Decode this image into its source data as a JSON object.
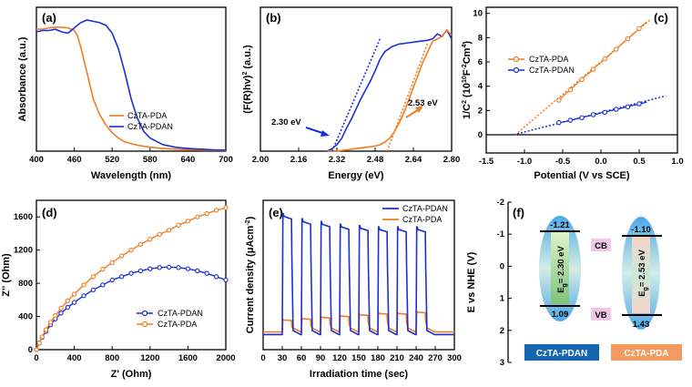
{
  "colors": {
    "orange": "#f07c20",
    "blue": "#1b2fd6",
    "black": "#000000",
    "pdan_box": "#1565b0",
    "pda_box": "#f59a5e"
  },
  "chart_data": [
    {
      "panel": "(a)",
      "type": "line",
      "xlabel": "Wavelength (nm)",
      "ylabel": "Absorbance (a.u.)",
      "xlim": [
        400,
        700
      ],
      "ylim": [
        0,
        1
      ],
      "xticks": [
        "400",
        "460",
        "520",
        "580",
        "640",
        "700"
      ],
      "series": [
        {
          "name": "CzTA-PDA",
          "color": "#f07c20",
          "x": [
            400,
            410,
            420,
            430,
            440,
            450,
            460,
            465,
            470,
            480,
            490,
            500,
            510,
            520,
            530,
            540,
            560,
            580,
            600,
            620,
            640,
            660,
            680,
            700
          ],
          "y": [
            0.93,
            0.93,
            0.94,
            0.945,
            0.945,
            0.94,
            0.92,
            0.88,
            0.8,
            0.6,
            0.4,
            0.28,
            0.2,
            0.14,
            0.1,
            0.07,
            0.045,
            0.03,
            0.02,
            0.015,
            0.01,
            0.008,
            0.006,
            0.005
          ]
        },
        {
          "name": "CzTA-PDAN",
          "color": "#1b2fd6",
          "x": [
            400,
            410,
            420,
            430,
            440,
            450,
            460,
            470,
            480,
            490,
            500,
            510,
            520,
            530,
            540,
            550,
            560,
            570,
            580,
            600,
            620,
            640,
            660,
            680,
            700
          ],
          "y": [
            0.91,
            0.92,
            0.92,
            0.93,
            0.91,
            0.9,
            0.94,
            0.98,
            1.0,
            0.99,
            0.98,
            0.96,
            0.9,
            0.78,
            0.6,
            0.4,
            0.25,
            0.15,
            0.1,
            0.05,
            0.03,
            0.02,
            0.015,
            0.01,
            0.008
          ]
        }
      ]
    },
    {
      "panel": "(b)",
      "type": "line",
      "xlabel": "Energy (eV)",
      "ylabel": "(F(R)hv)",
      "ylabel_sup": "2",
      "ylabel_end": " (a.u.)",
      "xlim": [
        2.0,
        2.8
      ],
      "ylim": [
        0,
        1
      ],
      "xticks": [
        "2.00",
        "2.16",
        "2.32",
        "2.48",
        "2.64",
        "2.80"
      ],
      "series": [
        {
          "name": "CzTA-PDAN",
          "color": "#1b2fd6",
          "x": [
            2.28,
            2.3,
            2.32,
            2.34,
            2.36,
            2.38,
            2.4,
            2.42,
            2.44,
            2.46,
            2.48,
            2.5,
            2.52,
            2.55,
            2.58,
            2.62,
            2.66,
            2.7,
            2.72,
            2.74,
            2.76,
            2.78,
            2.8
          ],
          "y": [
            0.0,
            0.02,
            0.05,
            0.1,
            0.18,
            0.25,
            0.33,
            0.41,
            0.48,
            0.55,
            0.63,
            0.72,
            0.78,
            0.82,
            0.84,
            0.85,
            0.86,
            0.87,
            0.88,
            0.92,
            0.9,
            0.95,
            0.88
          ]
        },
        {
          "name": "CzTA-PDA",
          "color": "#f07c20",
          "x": [
            2.28,
            2.32,
            2.36,
            2.4,
            2.44,
            2.48,
            2.5,
            2.52,
            2.54,
            2.56,
            2.58,
            2.6,
            2.62,
            2.64,
            2.66,
            2.68,
            2.7,
            2.72,
            2.74,
            2.76,
            2.78,
            2.8
          ],
          "y": [
            0.0,
            0.0,
            0.01,
            0.02,
            0.03,
            0.04,
            0.05,
            0.07,
            0.1,
            0.15,
            0.22,
            0.3,
            0.4,
            0.5,
            0.6,
            0.7,
            0.78,
            0.86,
            0.88,
            0.9,
            0.95,
            0.91
          ]
        }
      ],
      "tangents": [
        {
          "color": "#1b2fd6",
          "x": [
            2.3,
            2.5
          ],
          "y": [
            0.0,
            0.88
          ]
        },
        {
          "color": "#f07c20",
          "x": [
            2.53,
            2.7
          ],
          "y": [
            0.0,
            0.85
          ]
        }
      ],
      "annotations": [
        "2.30 eV",
        "2.53 eV"
      ]
    },
    {
      "panel": "(c)",
      "type": "scatter",
      "xlabel": "Potential (V vs SCE)",
      "ylabel": "1/C",
      "ylabel_sup": "2",
      "ylabel_mid": " (10",
      "ylabel_sup2": "10",
      "ylabel_end": "F",
      "ylabel_sup3": "-2",
      "ylabel_tail": "Cm",
      "ylabel_sup4": "4",
      "ylabel_close": ")",
      "xlim": [
        -1.5,
        1.0
      ],
      "ylim": [
        -1.5,
        10.5
      ],
      "xticks": [
        "-1.5",
        "-1.0",
        "-0.5",
        "0.0",
        "0.5",
        "1.0"
      ],
      "yticks": [
        "0",
        "2",
        "4",
        "6",
        "8",
        "10"
      ],
      "series": [
        {
          "name": "CzTA-PDA",
          "color": "#f07c20",
          "x": [
            -0.55,
            -0.5,
            -0.45,
            -0.4,
            -0.35,
            -0.3,
            -0.25,
            -0.2,
            -0.15,
            -0.1,
            -0.05,
            0.0,
            0.05,
            0.1,
            0.15,
            0.2,
            0.25,
            0.3,
            0.35,
            0.4,
            0.45,
            0.5,
            0.55,
            0.6
          ],
          "y": [
            2.85,
            3.15,
            3.45,
            3.7,
            4.0,
            4.3,
            4.55,
            4.85,
            5.1,
            5.4,
            5.7,
            5.95,
            6.25,
            6.5,
            6.8,
            7.05,
            7.35,
            7.65,
            7.9,
            8.2,
            8.45,
            8.75,
            9.05,
            9.3
          ]
        },
        {
          "name": "CzTA-PDAN",
          "color": "#1b2fd6",
          "x": [
            -0.55,
            -0.5,
            -0.45,
            -0.4,
            -0.35,
            -0.3,
            -0.25,
            -0.2,
            -0.15,
            -0.1,
            -0.05,
            0.0,
            0.05,
            0.1,
            0.15,
            0.2,
            0.25,
            0.3,
            0.35,
            0.4,
            0.45,
            0.5,
            0.55,
            0.6
          ],
          "y": [
            1.0,
            1.05,
            1.1,
            1.2,
            1.25,
            1.35,
            1.4,
            1.5,
            1.55,
            1.65,
            1.7,
            1.8,
            1.85,
            1.95,
            2.0,
            2.1,
            2.15,
            2.25,
            2.3,
            2.4,
            2.45,
            2.55,
            2.6,
            2.7
          ]
        }
      ],
      "fits": [
        {
          "color": "#f07c20",
          "x": [
            -1.12,
            0.65
          ],
          "y": [
            0.0,
            9.5
          ]
        },
        {
          "color": "#1b2fd6",
          "x": [
            -1.14,
            0.85
          ],
          "y": [
            0.0,
            3.2
          ]
        }
      ]
    },
    {
      "panel": "(d)",
      "type": "line",
      "xlabel": "Z' (Ohm)",
      "ylabel": "Z'' (Ohm)",
      "xlim": [
        0,
        2000
      ],
      "ylim": [
        0,
        1800
      ],
      "xticks": [
        "0",
        "400",
        "800",
        "1200",
        "1600",
        "2000"
      ],
      "yticks": [
        "0",
        "400",
        "800",
        "1200",
        "1600"
      ],
      "series": [
        {
          "name": "CzTA-PDAN",
          "color": "#1b2fd6",
          "x": [
            0,
            30,
            60,
            100,
            150,
            200,
            260,
            330,
            400,
            500,
            600,
            700,
            800,
            900,
            1000,
            1100,
            1200,
            1300,
            1400,
            1500,
            1600,
            1700,
            1800,
            1900,
            2000
          ],
          "y": [
            0,
            80,
            150,
            220,
            300,
            370,
            440,
            510,
            570,
            650,
            720,
            780,
            840,
            880,
            920,
            950,
            975,
            990,
            995,
            990,
            975,
            950,
            920,
            880,
            840
          ]
        },
        {
          "name": "CzTA-PDA",
          "color": "#f07c20",
          "x": [
            0,
            30,
            60,
            100,
            150,
            200,
            260,
            330,
            400,
            500,
            600,
            700,
            800,
            900,
            1000,
            1100,
            1200,
            1300,
            1400,
            1500,
            1600,
            1700,
            1800,
            1900,
            2000
          ],
          "y": [
            0,
            80,
            155,
            240,
            330,
            410,
            500,
            590,
            670,
            780,
            880,
            970,
            1050,
            1130,
            1200,
            1270,
            1330,
            1390,
            1440,
            1500,
            1550,
            1600,
            1640,
            1680,
            1710
          ]
        }
      ]
    },
    {
      "panel": "(e)",
      "type": "line",
      "xlabel": "Irradiation time (sec)",
      "ylabel": "Current density (μAcm",
      "ylabel_sup": "-2",
      "ylabel_close": ")",
      "xlim": [
        0,
        300
      ],
      "ylim": [
        0,
        1
      ],
      "xticks": [
        "0",
        "30",
        "60",
        "90",
        "120",
        "150",
        "180",
        "210",
        "240",
        "270",
        "300"
      ],
      "on_intervals": [
        [
          30,
          45
        ],
        [
          60,
          75
        ],
        [
          90,
          105
        ],
        [
          120,
          135
        ],
        [
          150,
          165
        ],
        [
          180,
          195
        ],
        [
          210,
          225
        ],
        [
          240,
          255
        ]
      ],
      "series": [
        {
          "name": "CzTA-PDAN",
          "color": "#1b2fd6",
          "on_levels": [
            0.96,
            0.92,
            0.9,
            0.88,
            0.87,
            0.86,
            0.86,
            0.86
          ],
          "off_level": 0.06
        },
        {
          "name": "CzTA-PDA",
          "color": "#f07c20",
          "on_levels": [
            0.17,
            0.18,
            0.19,
            0.2,
            0.21,
            0.22,
            0.22,
            0.23
          ],
          "off_level": 0.08
        }
      ]
    },
    {
      "panel": "(f)",
      "type": "diagram",
      "ylabel": "E vs NHE (V)",
      "ylim": [
        3,
        -2
      ],
      "yticks": [
        "-2",
        "-1",
        "0",
        "1",
        "2",
        "3"
      ],
      "materials": [
        {
          "name": "CzTA-PDAN",
          "cb": -1.21,
          "vb": 1.09,
          "cb_label": "-1.21",
          "vb_label": "1.09",
          "gap": "= 2.30 eV"
        },
        {
          "name": "CzTA-PDA",
          "cb": -1.1,
          "vb": 1.43,
          "cb_label": "-1.10",
          "vb_label": "1.43",
          "gap": "= 2.53 eV"
        }
      ],
      "gap_symbol": "E",
      "gap_sub": "g",
      "cb_tag": "CB",
      "vb_tag": "VB"
    }
  ]
}
